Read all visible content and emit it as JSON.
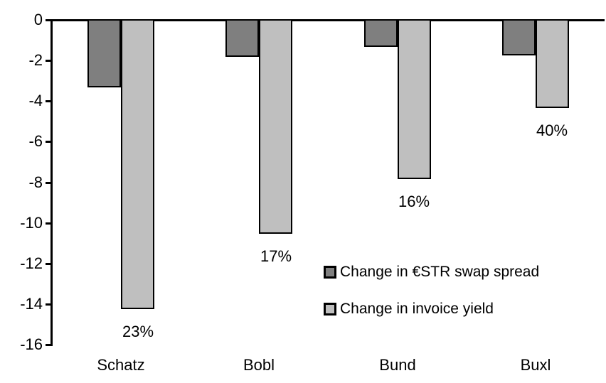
{
  "chart_data": {
    "type": "bar",
    "title": "",
    "xlabel": "",
    "ylabel": "",
    "categories": [
      "Schatz",
      "Bobl",
      "Bund",
      "Buxl"
    ],
    "series": [
      {
        "name": "Change in €STR swap spread",
        "color": "#7f7f7f",
        "values": [
          -3.3,
          -1.8,
          -1.3,
          -1.7
        ]
      },
      {
        "name": "Change in invoice yield",
        "color": "#bfbfbf",
        "values": [
          -14.2,
          -10.5,
          -7.8,
          -4.3
        ]
      }
    ],
    "bar_labels": {
      "series_index": 1,
      "values": [
        "23%",
        "17%",
        "16%",
        "40%"
      ]
    },
    "ylim": [
      -16,
      0
    ],
    "yticks": [
      0,
      -2,
      -4,
      -6,
      -8,
      -10,
      -12,
      -14,
      -16
    ],
    "grid": false,
    "legend_position": "inside-right",
    "axis_color": "#000000",
    "background_color": "#ffffff"
  }
}
